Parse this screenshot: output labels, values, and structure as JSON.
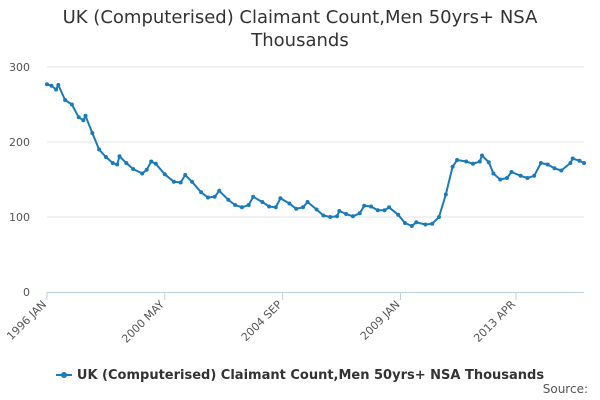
{
  "chart_data": {
    "type": "line",
    "title": "UK (Computerised) Claimant Count,Men 50yrs+ NSA Thousands",
    "title_lines": [
      "UK (Computerised) Claimant Count,Men 50yrs+ NSA",
      "Thousands"
    ],
    "xlabel": "",
    "ylabel": "",
    "ylim": [
      0,
      300
    ],
    "yticks": [
      0,
      100,
      200,
      300
    ],
    "xticks": [
      "1996 JAN",
      "2000 MAY",
      "2004 SEP",
      "2009 JAN",
      "2013 APR"
    ],
    "grid": true,
    "legend_position": "bottom",
    "color": "#1a7bb9",
    "series": [
      {
        "name": "UK (Computerised) Claimant Count,Men 50yrs+ NSA Thousands",
        "points": [
          [
            "1996-01",
            277
          ],
          [
            "1996-03",
            275
          ],
          [
            "1996-05",
            270
          ],
          [
            "1996-06",
            276
          ],
          [
            "1996-09",
            256
          ],
          [
            "1996-12",
            250
          ],
          [
            "1997-03",
            233
          ],
          [
            "1997-05",
            229
          ],
          [
            "1997-06",
            235
          ],
          [
            "1997-09",
            212
          ],
          [
            "1997-12",
            190
          ],
          [
            "1998-03",
            180
          ],
          [
            "1998-06",
            172
          ],
          [
            "1998-08",
            170
          ],
          [
            "1998-09",
            181
          ],
          [
            "1998-12",
            172
          ],
          [
            "1999-03",
            164
          ],
          [
            "1999-07",
            158
          ],
          [
            "1999-09",
            163
          ],
          [
            "1999-11",
            174
          ],
          [
            "2000-01",
            171
          ],
          [
            "2000-05",
            157
          ],
          [
            "2000-09",
            147
          ],
          [
            "2000-12",
            146
          ],
          [
            "2001-02",
            156
          ],
          [
            "2001-05",
            147
          ],
          [
            "2001-09",
            133
          ],
          [
            "2001-12",
            126
          ],
          [
            "2002-03",
            127
          ],
          [
            "2002-05",
            135
          ],
          [
            "2002-09",
            123
          ],
          [
            "2002-12",
            116
          ],
          [
            "2003-03",
            113
          ],
          [
            "2003-06",
            116
          ],
          [
            "2003-08",
            127
          ],
          [
            "2003-12",
            120
          ],
          [
            "2004-03",
            114
          ],
          [
            "2004-06",
            113
          ],
          [
            "2004-08",
            125
          ],
          [
            "2004-12",
            118
          ],
          [
            "2005-03",
            111
          ],
          [
            "2005-06",
            113
          ],
          [
            "2005-08",
            120
          ],
          [
            "2005-12",
            110
          ],
          [
            "2006-03",
            102
          ],
          [
            "2006-06",
            100
          ],
          [
            "2006-09",
            101
          ],
          [
            "2006-10",
            108
          ],
          [
            "2007-01",
            104
          ],
          [
            "2007-04",
            101
          ],
          [
            "2007-07",
            105
          ],
          [
            "2007-09",
            115
          ],
          [
            "2007-12",
            114
          ],
          [
            "2008-03",
            109
          ],
          [
            "2008-06",
            109
          ],
          [
            "2008-08",
            113
          ],
          [
            "2008-12",
            103
          ],
          [
            "2009-03",
            92
          ],
          [
            "2009-06",
            88
          ],
          [
            "2009-08",
            93
          ],
          [
            "2009-12",
            90
          ],
          [
            "2010-03",
            91
          ],
          [
            "2010-06",
            100
          ],
          [
            "2010-09",
            130
          ],
          [
            "2010-12",
            167
          ],
          [
            "2011-02",
            176
          ],
          [
            "2011-06",
            174
          ],
          [
            "2011-09",
            171
          ],
          [
            "2011-12",
            174
          ],
          [
            "2012-01",
            182
          ],
          [
            "2012-04",
            173
          ],
          [
            "2012-06",
            158
          ],
          [
            "2012-09",
            150
          ],
          [
            "2012-12",
            152
          ],
          [
            "2013-02",
            160
          ],
          [
            "2013-06",
            155
          ],
          [
            "2013-09",
            152
          ],
          [
            "2013-12",
            155
          ],
          [
            "2014-03",
            172
          ],
          [
            "2014-06",
            170
          ],
          [
            "2014-09",
            165
          ],
          [
            "2014-12",
            162
          ],
          [
            "2015-04",
            172
          ],
          [
            "2015-05",
            178
          ],
          [
            "2015-08",
            175
          ],
          [
            "2015-10",
            172
          ]
        ]
      }
    ]
  },
  "legend": {
    "label": "UK (Computerised) Claimant Count,Men 50yrs+ NSA Thousands"
  },
  "source": {
    "label": "Source:"
  }
}
